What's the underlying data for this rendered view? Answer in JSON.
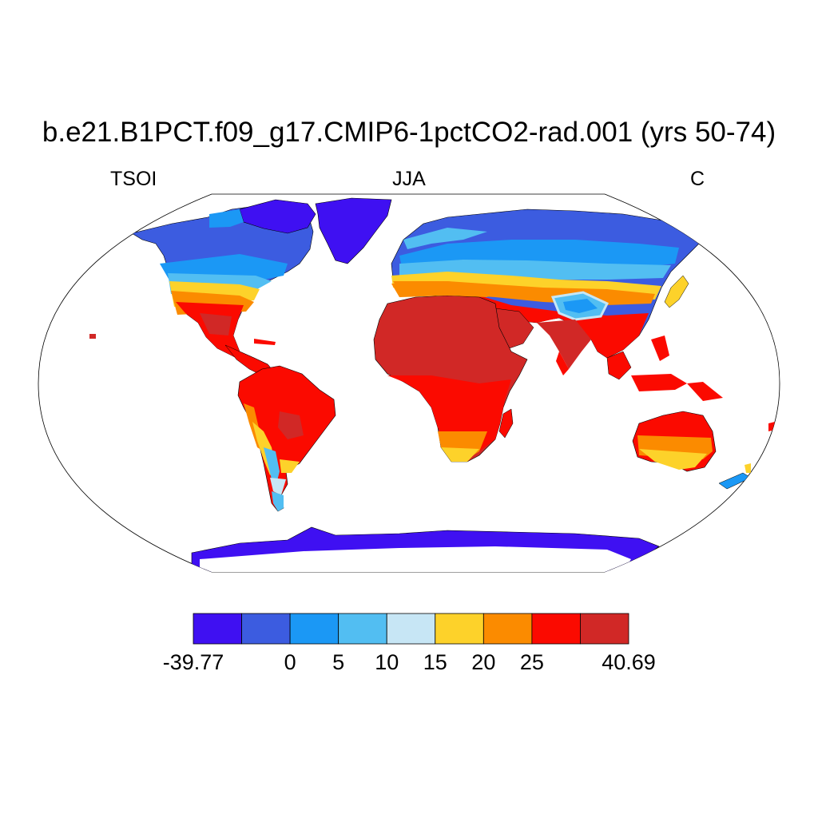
{
  "title": "b.e21.B1PCT.f09_g17.CMIP6-1pctCO2-rad.001 (yrs 50-74)",
  "subtitle_left": "TSOI",
  "subtitle_center": "JJA",
  "subtitle_right": "C",
  "colorbar": {
    "colors": [
      "#3f10f2",
      "#3c5ce0",
      "#1b98f5",
      "#52bef2",
      "#c7e6f5",
      "#fdd22a",
      "#fb8b00",
      "#fb0a00",
      "#d12826"
    ],
    "labels": [
      "-39.77",
      "0",
      "5",
      "10",
      "15",
      "20",
      "25",
      "40.69"
    ],
    "label_boundary_index": [
      0,
      2,
      3,
      4,
      5,
      6,
      7,
      9
    ]
  }
}
